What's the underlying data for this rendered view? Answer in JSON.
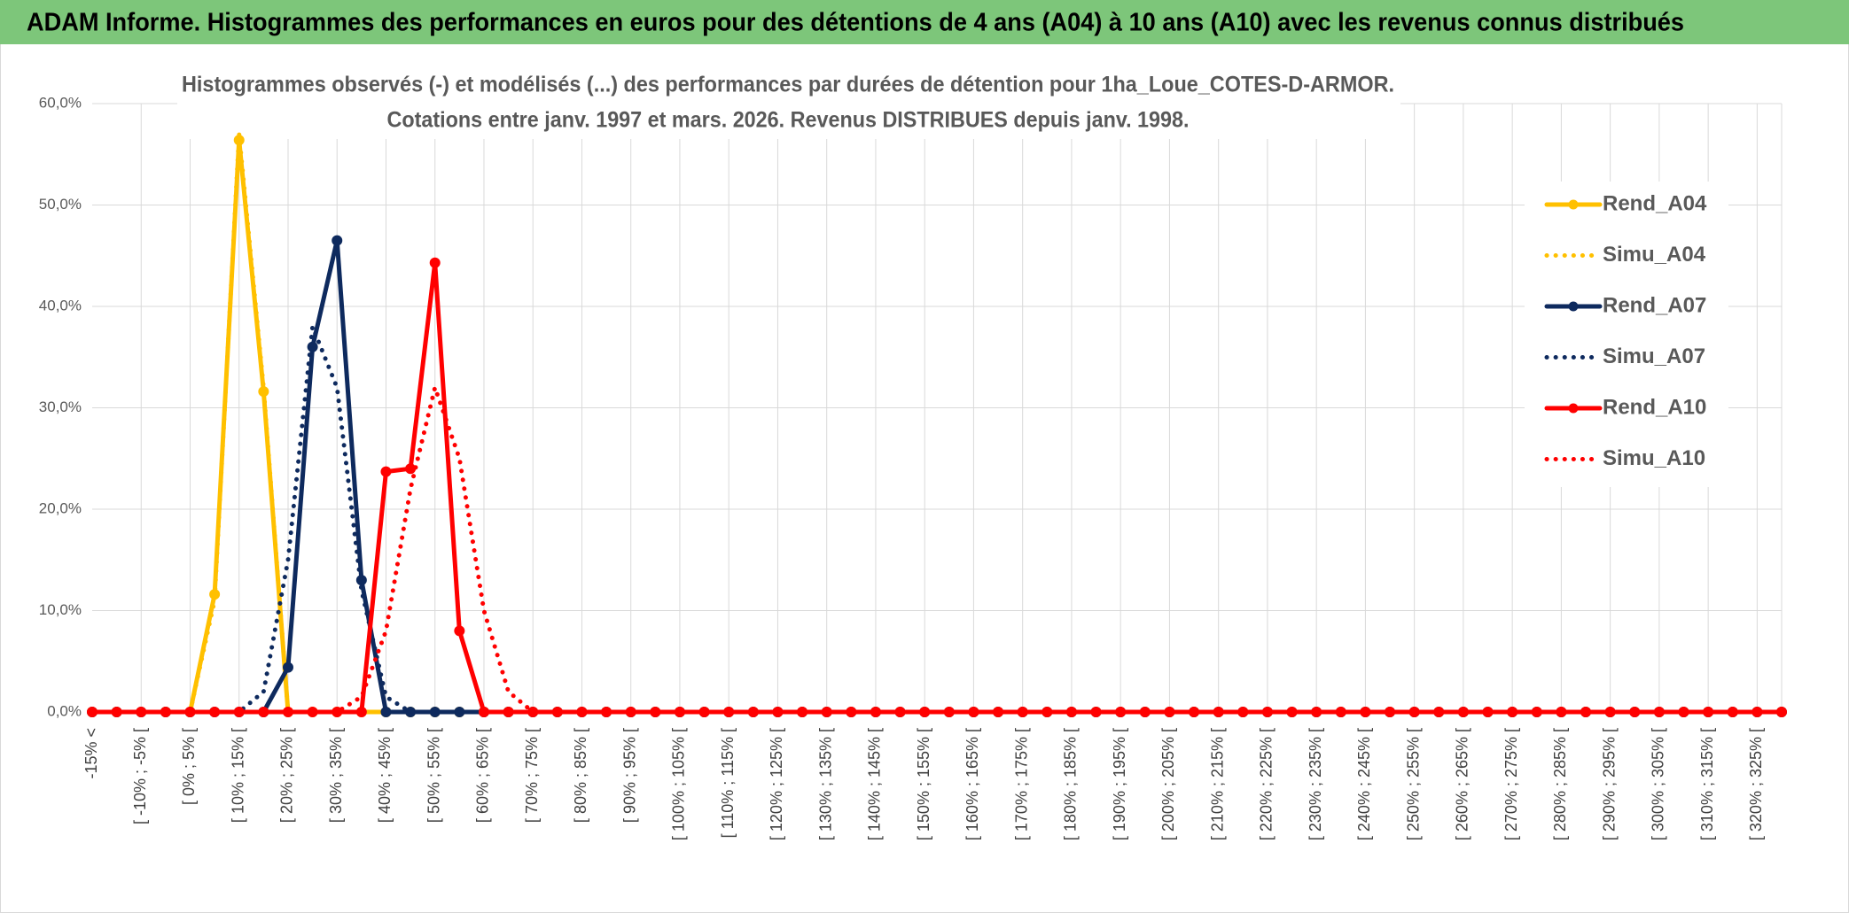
{
  "chart_data": {
    "type": "line",
    "title": "ADAM Informe. Histogrammes des performances en euros pour des détentions de 4 ans (A04) à 10 ans (A10) avec les revenus connus distribués",
    "subtitle": [
      "Histogrammes observés (-) et modélisés (...) des performances par durées de détention pour 1ha_Loue_COTES-D-ARMOR.",
      "Cotations entre janv. 1997 et mars. 2026. Revenus DISTRIBUES depuis janv. 1998."
    ],
    "categories": [
      "-15% <",
      null,
      "[ -10% ; -5% [",
      null,
      "[ 0% ; 5% [",
      null,
      "[ 10% ; 15% [",
      null,
      "[ 20% ; 25% [",
      null,
      "[ 30% ; 35% [",
      null,
      "[ 40% ; 45% [",
      null,
      "[ 50% ; 55% [",
      null,
      "[ 60% ; 65% [",
      null,
      "[ 70% ; 75% [",
      null,
      "[ 80% ; 85% [",
      null,
      "[ 90% ; 95% [",
      null,
      "[ 100% ; 105% [",
      null,
      "[ 110% ; 115% [",
      null,
      "[ 120% ; 125% [",
      null,
      "[ 130% ; 135% [",
      null,
      "[ 140% ; 145% [",
      null,
      "[ 150% ; 155% [",
      null,
      "[ 160% ; 165% [",
      null,
      "[ 170% ; 175% [",
      null,
      "[ 180% ; 185% [",
      null,
      "[ 190% ; 195% [",
      null,
      "[ 200% ; 205% [",
      null,
      "[ 210% ; 215% [",
      null,
      "[ 220% ; 225% [",
      null,
      "[ 230% ; 235% [",
      null,
      "[ 240% ; 245% [",
      null,
      "[ 250% ; 255% [",
      null,
      "[ 260% ; 265% [",
      null,
      "[ 270% ; 275% [",
      null,
      "[ 280% ; 285% [",
      null,
      "[ 290% ; 295% [",
      null,
      "[ 300% ; 305% [",
      null,
      "[ 310% ; 315% [",
      null,
      "[ 320% ; 325% [",
      null
    ],
    "series": [
      {
        "name": "Rend_A04",
        "color": "#ffc000",
        "dashed": false,
        "values": [
          0,
          0,
          0,
          0,
          0,
          11.6,
          56.4,
          31.6,
          0,
          0,
          0,
          0,
          0,
          0,
          0,
          0,
          0,
          0,
          0,
          0,
          0,
          0,
          0,
          0,
          0,
          0,
          0,
          0,
          0,
          0,
          0,
          0,
          0,
          0,
          0,
          0,
          0,
          0,
          0,
          0,
          0,
          0,
          0,
          0,
          0,
          0,
          0,
          0,
          0,
          0,
          0,
          0,
          0,
          0,
          0,
          0,
          0,
          0,
          0,
          0,
          0,
          0,
          0,
          0,
          0,
          0,
          0,
          0,
          0,
          0
        ]
      },
      {
        "name": "Simu_A04",
        "color": "#ffc000",
        "dashed": true,
        "values": [
          0,
          0,
          0,
          0,
          0,
          11,
          57,
          32,
          0,
          0,
          0,
          0,
          0,
          0,
          0,
          0,
          0,
          0,
          0,
          0,
          0,
          0,
          0,
          0,
          0,
          0,
          0,
          0,
          0,
          0,
          0,
          0,
          0,
          0,
          0,
          0,
          0,
          0,
          0,
          0,
          0,
          0,
          0,
          0,
          0,
          0,
          0,
          0,
          0,
          0,
          0,
          0,
          0,
          0,
          0,
          0,
          0,
          0,
          0,
          0,
          0,
          0,
          0,
          0,
          0,
          0,
          0,
          0,
          0,
          0
        ]
      },
      {
        "name": "Rend_A07",
        "color": "#0e2a5e",
        "dashed": false,
        "values": [
          0,
          0,
          0,
          0,
          0,
          0,
          0,
          0,
          4.4,
          36,
          46.5,
          13,
          0,
          0,
          0,
          0,
          0,
          0,
          0,
          0,
          0,
          0,
          0,
          0,
          0,
          0,
          0,
          0,
          0,
          0,
          0,
          0,
          0,
          0,
          0,
          0,
          0,
          0,
          0,
          0,
          0,
          0,
          0,
          0,
          0,
          0,
          0,
          0,
          0,
          0,
          0,
          0,
          0,
          0,
          0,
          0,
          0,
          0,
          0,
          0,
          0,
          0,
          0,
          0,
          0,
          0,
          0,
          0,
          0,
          0
        ]
      },
      {
        "name": "Simu_A07",
        "color": "#0e2a5e",
        "dashed": true,
        "values": [
          0,
          0,
          0,
          0,
          0,
          0,
          0,
          2,
          15,
          38,
          32,
          12,
          1.5,
          0,
          0,
          0,
          0,
          0,
          0,
          0,
          0,
          0,
          0,
          0,
          0,
          0,
          0,
          0,
          0,
          0,
          0,
          0,
          0,
          0,
          0,
          0,
          0,
          0,
          0,
          0,
          0,
          0,
          0,
          0,
          0,
          0,
          0,
          0,
          0,
          0,
          0,
          0,
          0,
          0,
          0,
          0,
          0,
          0,
          0,
          0,
          0,
          0,
          0,
          0,
          0,
          0,
          0,
          0,
          0,
          0
        ]
      },
      {
        "name": "Rend_A10",
        "color": "#ff0000",
        "dashed": false,
        "values": [
          0,
          0,
          0,
          0,
          0,
          0,
          0,
          0,
          0,
          0,
          0,
          0,
          23.7,
          24,
          44.3,
          8,
          0,
          0,
          0,
          0,
          0,
          0,
          0,
          0,
          0,
          0,
          0,
          0,
          0,
          0,
          0,
          0,
          0,
          0,
          0,
          0,
          0,
          0,
          0,
          0,
          0,
          0,
          0,
          0,
          0,
          0,
          0,
          0,
          0,
          0,
          0,
          0,
          0,
          0,
          0,
          0,
          0,
          0,
          0,
          0,
          0,
          0,
          0,
          0,
          0,
          0,
          0,
          0,
          0,
          0
        ]
      },
      {
        "name": "Simu_A10",
        "color": "#ff0000",
        "dashed": true,
        "values": [
          0,
          0,
          0,
          0,
          0,
          0,
          0,
          0,
          0,
          0,
          0,
          1.5,
          8,
          22,
          32,
          25,
          10,
          2,
          0,
          0,
          0,
          0,
          0,
          0,
          0,
          0,
          0,
          0,
          0,
          0,
          0,
          0,
          0,
          0,
          0,
          0,
          0,
          0,
          0,
          0,
          0,
          0,
          0,
          0,
          0,
          0,
          0,
          0,
          0,
          0,
          0,
          0,
          0,
          0,
          0,
          0,
          0,
          0,
          0,
          0,
          0,
          0,
          0,
          0,
          0,
          0,
          0,
          0,
          0,
          0
        ]
      }
    ],
    "ylim": [
      0,
      60
    ],
    "yticks": [
      {
        "value": 0,
        "label": "0,0%"
      },
      {
        "value": 10,
        "label": "10,0%"
      },
      {
        "value": 20,
        "label": "20,0%"
      },
      {
        "value": 30,
        "label": "30,0%"
      },
      {
        "value": 40,
        "label": "40,0%"
      },
      {
        "value": 50,
        "label": "50,0%"
      },
      {
        "value": 60,
        "label": "60,0%"
      }
    ],
    "grid": true,
    "legend": "right"
  }
}
